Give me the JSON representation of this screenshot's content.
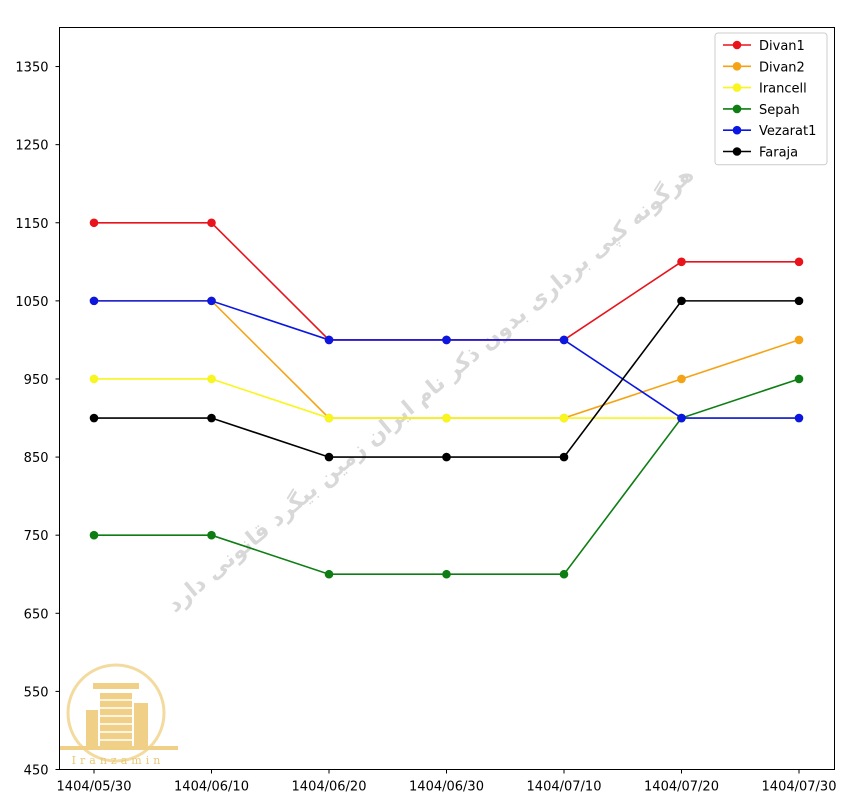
{
  "chart_data": {
    "type": "line",
    "title": "",
    "xlabel": "",
    "ylabel": "",
    "categories": [
      "1404/05/30",
      "1404/06/10",
      "1404/06/20",
      "1404/06/30",
      "1404/07/10",
      "1404/07/20",
      "1404/07/30"
    ],
    "yticks": [
      450,
      550,
      650,
      750,
      850,
      950,
      1050,
      1150,
      1250,
      1350
    ],
    "ylim": [
      450,
      1400
    ],
    "grid": false,
    "legend_position": "top-right",
    "series": [
      {
        "name": "Divan1",
        "color": "#e8131b",
        "values": [
          1150,
          1150,
          1000,
          1000,
          1000,
          1100,
          1100
        ]
      },
      {
        "name": "Divan2",
        "color": "#f5a316",
        "values": [
          1050,
          1050,
          900,
          900,
          900,
          950,
          1000
        ]
      },
      {
        "name": "Irancell",
        "color": "#f8f51f",
        "values": [
          950,
          950,
          900,
          900,
          900,
          900,
          900
        ]
      },
      {
        "name": "Sepah",
        "color": "#0e7d13",
        "values": [
          750,
          750,
          700,
          700,
          700,
          900,
          950
        ]
      },
      {
        "name": "Vezarat1",
        "color": "#0b16e0",
        "values": [
          1050,
          1050,
          1000,
          1000,
          1000,
          900,
          900
        ]
      },
      {
        "name": "Faraja",
        "color": "#000000",
        "values": [
          900,
          900,
          850,
          850,
          850,
          1050,
          1050
        ]
      }
    ]
  },
  "watermark": {
    "text": "هرگونه کپی برداری بدون ذکر نام ایران زمین بیگرد قانونی دارد"
  },
  "logo": {
    "name": "iranzamin-logo",
    "text": "Iranzamin"
  }
}
